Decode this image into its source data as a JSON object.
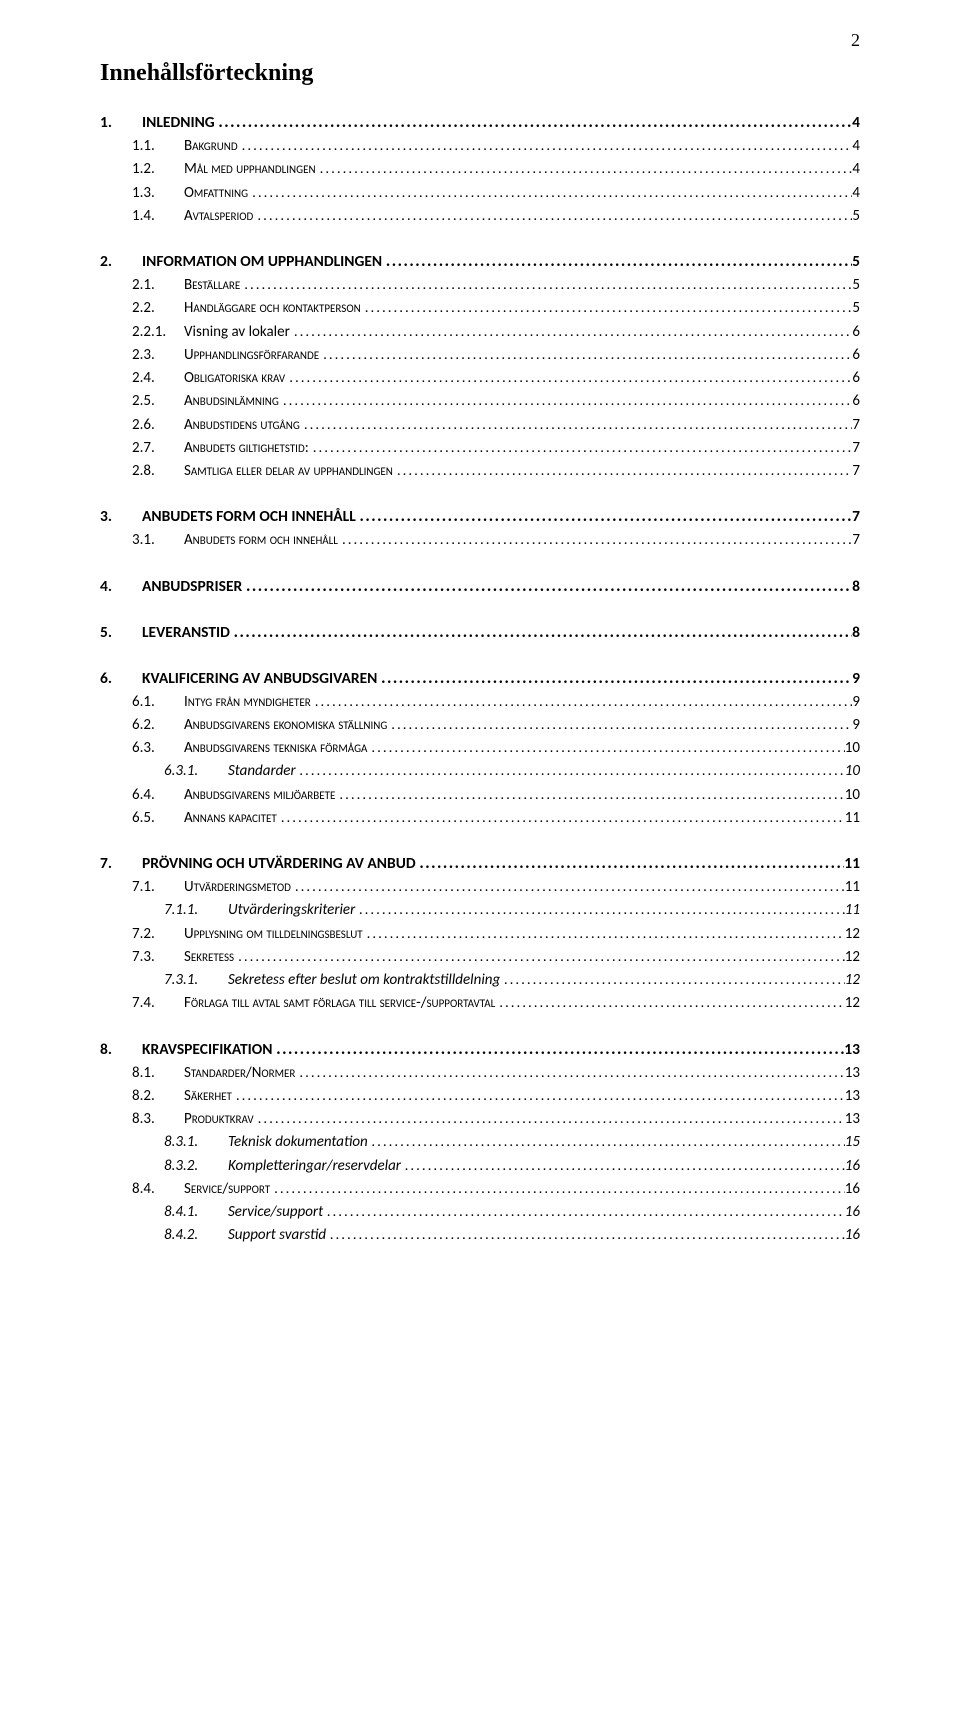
{
  "page_number": "2",
  "toc_title": "Innehållsförteckning",
  "leader_dots": "........................................................................................................................................................................................................................",
  "entries": [
    {
      "level": 1,
      "num": "1.",
      "text": "INLEDNING",
      "page": "4"
    },
    {
      "level": 2,
      "num": "1.1.",
      "text": "Bakgrund",
      "page": "4"
    },
    {
      "level": 2,
      "num": "1.2.",
      "text": "Mål med upphandlingen",
      "page": "4"
    },
    {
      "level": 2,
      "num": "1.3.",
      "text": "Omfattning",
      "page": "4"
    },
    {
      "level": 2,
      "num": "1.4.",
      "text": "Avtalsperiod",
      "page": "5"
    },
    {
      "level": 1,
      "num": "2.",
      "text": "INFORMATION OM UPPHANDLINGEN",
      "page": "5"
    },
    {
      "level": 2,
      "num": "2.1.",
      "text": "Beställare",
      "page": "5"
    },
    {
      "level": 2,
      "num": "2.2.",
      "text": "Handläggare och kontaktperson",
      "page": "5"
    },
    {
      "level": 2,
      "num": "2.2.1.",
      "text": "Visning av lokaler",
      "page": "6",
      "noSmallCaps": true
    },
    {
      "level": 2,
      "num": "2.3.",
      "text": "Upphandlingsförfarande",
      "page": "6"
    },
    {
      "level": 2,
      "num": "2.4.",
      "text": "Obligatoriska krav",
      "page": "6"
    },
    {
      "level": 2,
      "num": "2.5.",
      "text": "Anbudsinlämning",
      "page": "6"
    },
    {
      "level": 2,
      "num": "2.6.",
      "text": "Anbudstidens utgång",
      "page": "7"
    },
    {
      "level": 2,
      "num": "2.7.",
      "text": "Anbudets giltighetstid:",
      "page": "7"
    },
    {
      "level": 2,
      "num": "2.8.",
      "text": "Samtliga eller delar av upphandlingen",
      "page": "7"
    },
    {
      "level": 1,
      "num": "3.",
      "text": "ANBUDETS FORM OCH INNEHÅLL",
      "page": "7"
    },
    {
      "level": 2,
      "num": "3.1.",
      "text": "Anbudets form och innehåll",
      "page": "7"
    },
    {
      "level": 1,
      "num": "4.",
      "text": "ANBUDSPRISER",
      "page": "8"
    },
    {
      "level": 1,
      "num": "5.",
      "text": "LEVERANSTID",
      "page": "8"
    },
    {
      "level": 1,
      "num": "6.",
      "text": "KVALIFICERING AV ANBUDSGIVAREN",
      "page": "9"
    },
    {
      "level": 2,
      "num": "6.1.",
      "text": "Intyg från myndigheter",
      "page": "9"
    },
    {
      "level": 2,
      "num": "6.2.",
      "text": "Anbudsgivarens ekonomiska ställning",
      "page": "9"
    },
    {
      "level": 2,
      "num": "6.3.",
      "text": "Anbudsgivarens tekniska förmåga",
      "page": "10"
    },
    {
      "level": 3,
      "num": "6.3.1.",
      "text": "Standarder",
      "page": "10"
    },
    {
      "level": 2,
      "num": "6.4.",
      "text": "Anbudsgivarens miljöarbete",
      "page": "10"
    },
    {
      "level": 2,
      "num": "6.5.",
      "text": "Annans kapacitet",
      "page": "11"
    },
    {
      "level": 1,
      "num": "7.",
      "text": "PRÖVNING OCH UTVÄRDERING AV ANBUD",
      "page": "11"
    },
    {
      "level": 2,
      "num": "7.1.",
      "text": "Utvärderingsmetod",
      "page": "11"
    },
    {
      "level": 3,
      "num": "7.1.1.",
      "text": "Utvärderingskriterier",
      "page": "11"
    },
    {
      "level": 2,
      "num": "7.2.",
      "text": "Upplysning om tilldelningsbeslut",
      "page": "12"
    },
    {
      "level": 2,
      "num": "7.3.",
      "text": "Sekretess",
      "page": "12"
    },
    {
      "level": 3,
      "num": "7.3.1.",
      "text": "Sekretess efter beslut om kontraktstilldelning",
      "page": "12"
    },
    {
      "level": 2,
      "num": "7.4.",
      "text": "Förlaga till avtal samt förlaga till service-/supportavtal",
      "page": "12"
    },
    {
      "level": 1,
      "num": "8.",
      "text": "KRAVSPECIFIKATION",
      "page": "13"
    },
    {
      "level": 2,
      "num": "8.1.",
      "text": "Standarder/Normer",
      "page": "13"
    },
    {
      "level": 2,
      "num": "8.2.",
      "text": "Säkerhet",
      "page": "13"
    },
    {
      "level": 2,
      "num": "8.3.",
      "text": "Produktkrav",
      "page": "13"
    },
    {
      "level": 3,
      "num": "8.3.1.",
      "text": "Teknisk dokumentation",
      "page": "15"
    },
    {
      "level": 3,
      "num": "8.3.2.",
      "text": "Kompletteringar/reservdelar",
      "page": "16"
    },
    {
      "level": 2,
      "num": "8.4.",
      "text": "Service/support",
      "page": "16"
    },
    {
      "level": 3,
      "num": "8.4.1.",
      "text": "Service/support",
      "page": "16"
    },
    {
      "level": 3,
      "num": "8.4.2.",
      "text": "Support svarstid",
      "page": "16"
    }
  ],
  "colors": {
    "background": "#ffffff",
    "text": "#000000"
  },
  "fonts": {
    "title_family": "Times New Roman",
    "body_family": "Calibri",
    "title_size_pt": 18,
    "row_size_pt": 11
  }
}
